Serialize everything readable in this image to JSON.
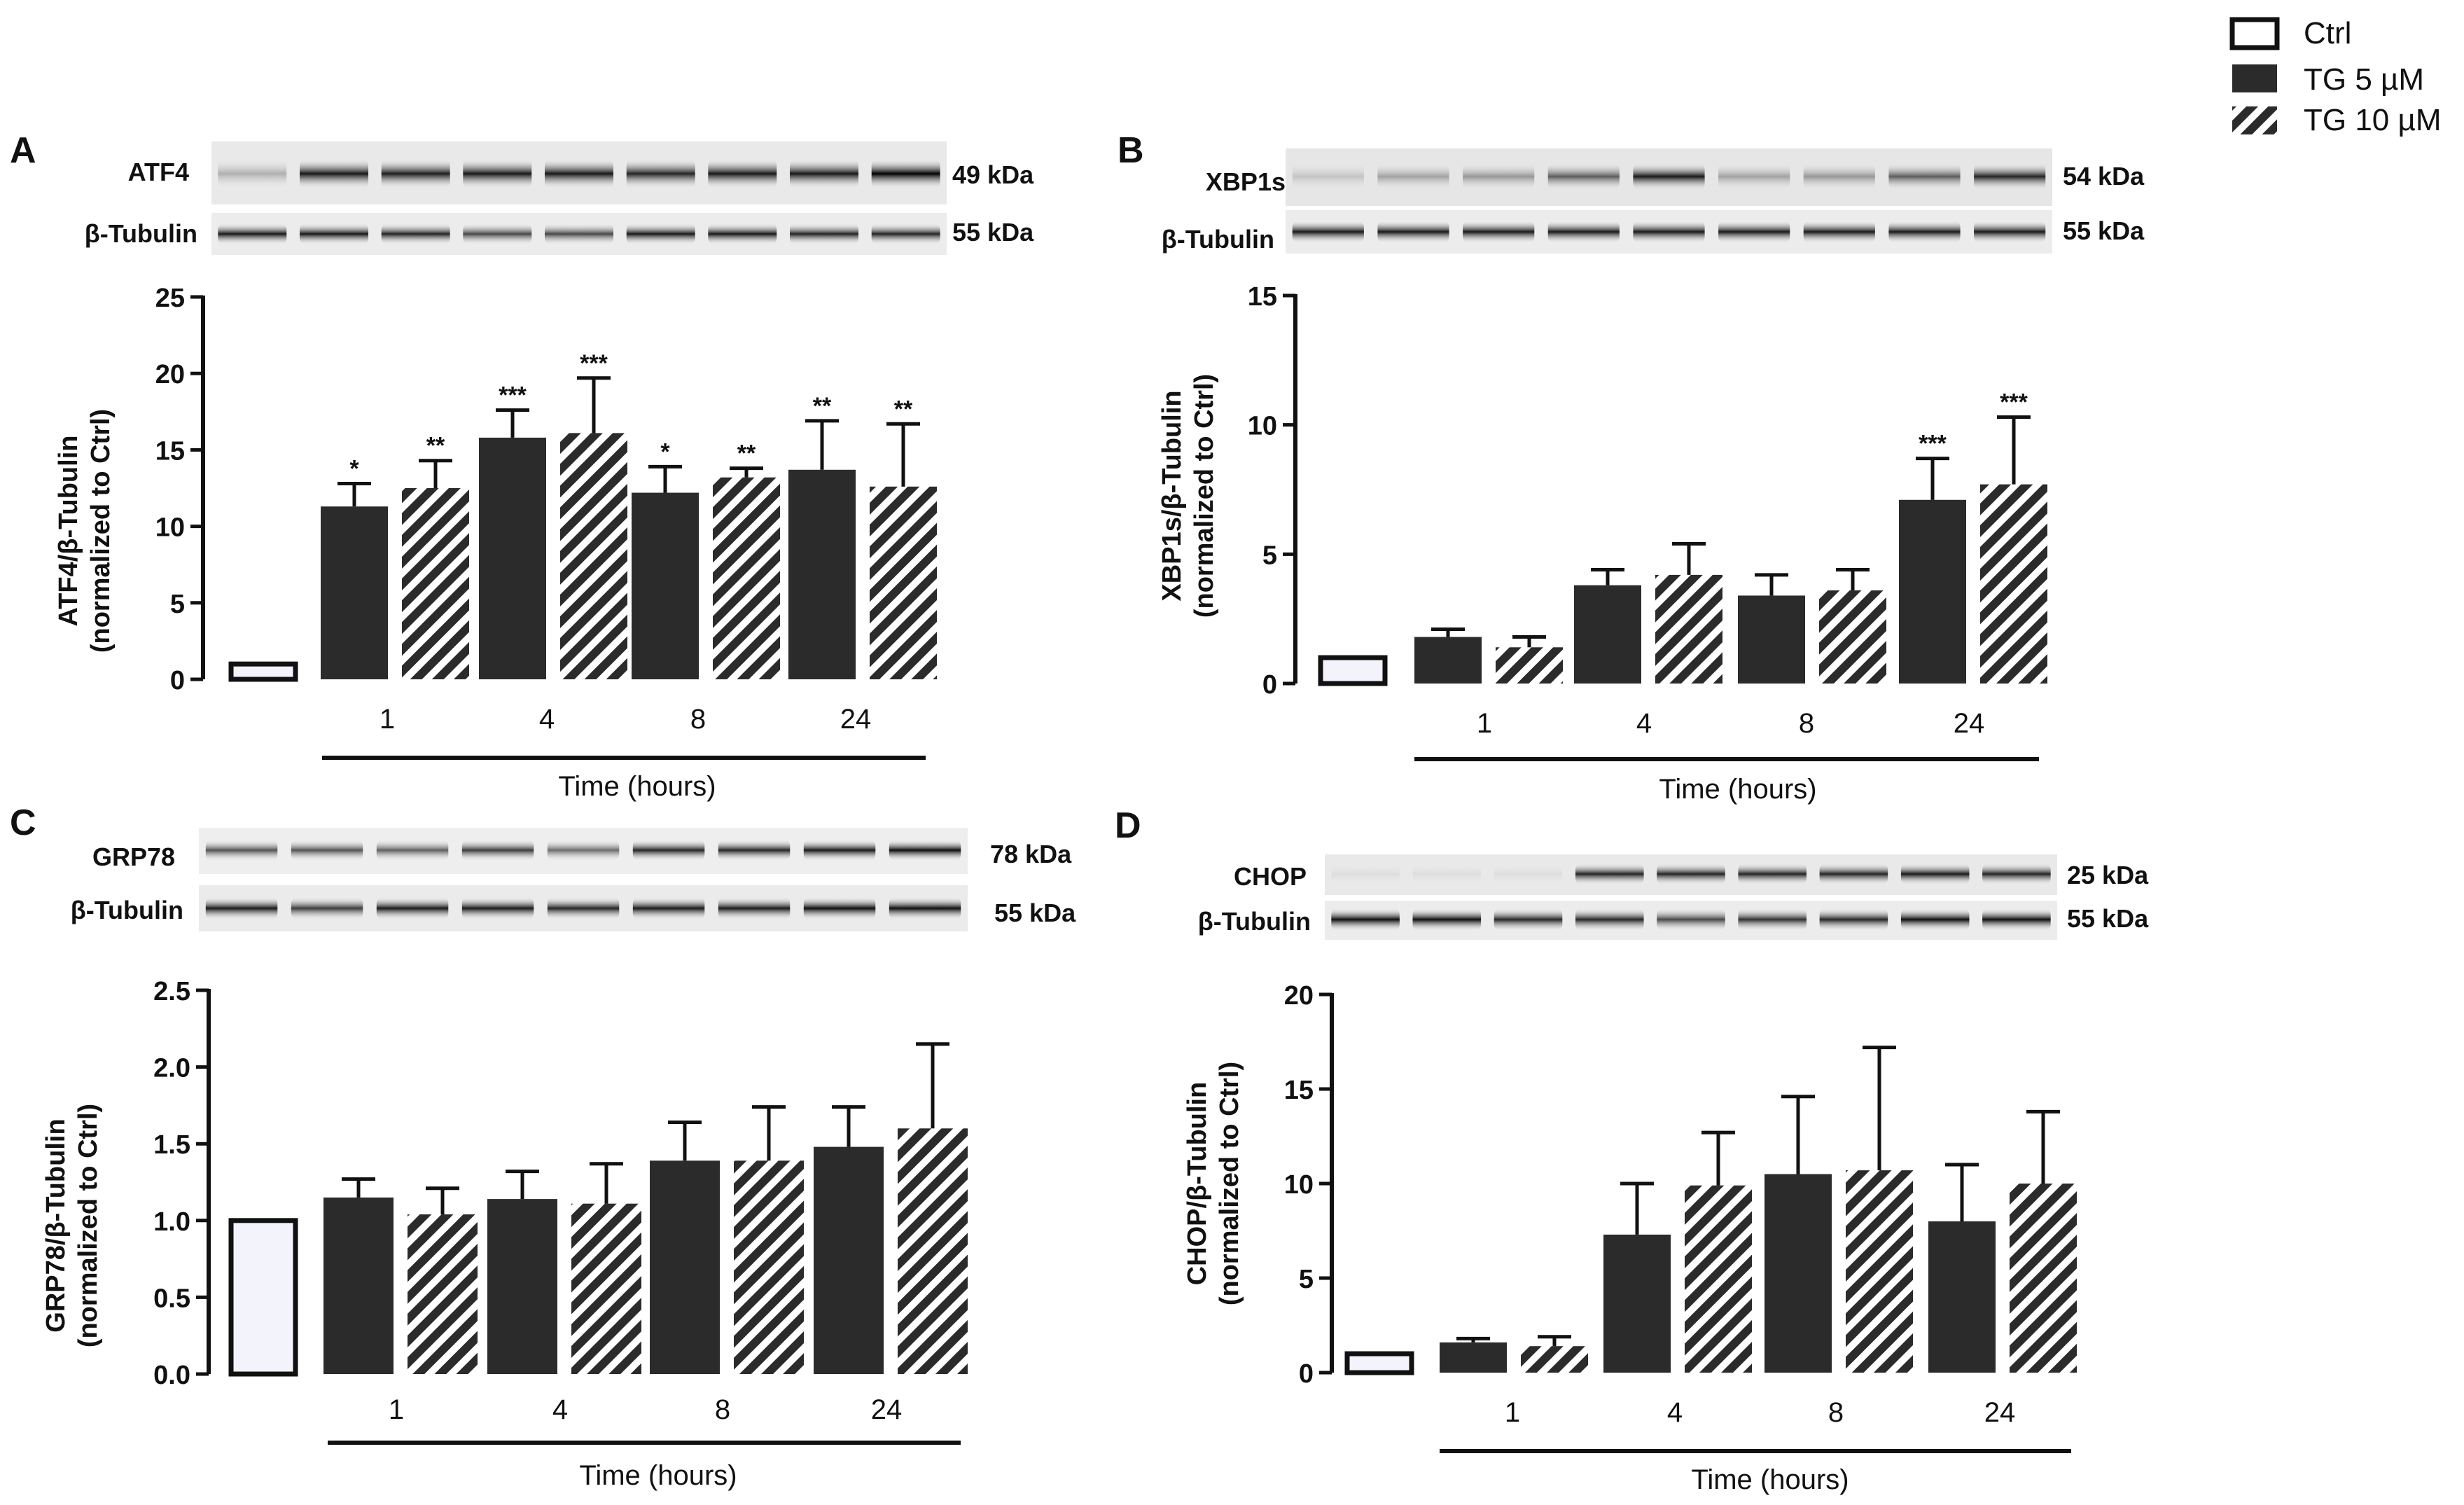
{
  "legend": [
    {
      "label": "Ctrl",
      "style": "ctrl"
    },
    {
      "label": "TG 5 µM",
      "style": "solid"
    },
    {
      "label": "TG 10 µM",
      "style": "hatch"
    }
  ],
  "colors": {
    "dark_bar": "#2b2b2b",
    "ctrl_fill": "#f2f3fb",
    "axis": "#111111"
  },
  "chart_data": [
    {
      "panel": "A",
      "type": "bar",
      "blot": {
        "rows": [
          {
            "label": "ATF4",
            "kda": "49 kDa"
          },
          {
            "label": "β-Tubulin",
            "kda": "55 kDa"
          }
        ]
      },
      "ylabel_line1": "ATF4/β-Tubulin",
      "ylabel_line2": "(normalized to Ctrl)",
      "xlabel": "Time (hours)",
      "yticks": [
        "0",
        "5",
        "10",
        "15",
        "20",
        "25"
      ],
      "ylim": [
        0,
        25
      ],
      "categories": [
        "1",
        "4",
        "8",
        "24"
      ],
      "ctrl": {
        "value": 1.0,
        "error": 0
      },
      "series": [
        {
          "name": "TG 5 µM",
          "values": [
            11.3,
            15.8,
            12.2,
            13.7
          ],
          "errors": [
            1.5,
            1.8,
            1.7,
            3.2
          ],
          "sig": [
            "*",
            "***",
            "*",
            "**"
          ]
        },
        {
          "name": "TG 10 µM",
          "values": [
            12.5,
            16.1,
            13.2,
            12.6
          ],
          "errors": [
            1.8,
            3.6,
            0.6,
            4.1
          ],
          "sig": [
            "**",
            "***",
            "**",
            "**"
          ]
        }
      ]
    },
    {
      "panel": "B",
      "type": "bar",
      "blot": {
        "rows": [
          {
            "label": "XBP1s",
            "kda": "54 kDa"
          },
          {
            "label": "β-Tubulin",
            "kda": "55 kDa"
          }
        ]
      },
      "ylabel_line1": "XBP1s/β-Tubulin",
      "ylabel_line2": "(normalized to Ctrl)",
      "xlabel": "Time (hours)",
      "yticks": [
        "0",
        "5",
        "10",
        "15"
      ],
      "ylim": [
        0,
        15
      ],
      "categories": [
        "1",
        "4",
        "8",
        "24"
      ],
      "ctrl": {
        "value": 1.0,
        "error": 0
      },
      "series": [
        {
          "name": "TG 5 µM",
          "values": [
            1.8,
            3.8,
            3.4,
            7.1
          ],
          "errors": [
            0.3,
            0.6,
            0.8,
            1.6
          ],
          "sig": [
            "",
            "",
            "",
            "***"
          ]
        },
        {
          "name": "TG 10 µM",
          "values": [
            1.4,
            4.2,
            3.6,
            7.7
          ],
          "errors": [
            0.4,
            1.2,
            0.8,
            2.6
          ],
          "sig": [
            "",
            "",
            "",
            "***"
          ]
        }
      ]
    },
    {
      "panel": "C",
      "type": "bar",
      "blot": {
        "rows": [
          {
            "label": "GRP78",
            "kda": "78 kDa"
          },
          {
            "label": "β-Tubulin",
            "kda": "55 kDa"
          }
        ]
      },
      "ylabel_line1": "GRP78/β-Tubulin",
      "ylabel_line2": "(normalized to Ctrl)",
      "xlabel": "Time (hours)",
      "yticks": [
        "0.0",
        "0.5",
        "1.0",
        "1.5",
        "2.0",
        "2.5"
      ],
      "ylim": [
        0,
        2.5
      ],
      "categories": [
        "1",
        "4",
        "8",
        "24"
      ],
      "ctrl": {
        "value": 1.0,
        "error": 0
      },
      "series": [
        {
          "name": "TG 5 µM",
          "values": [
            1.15,
            1.14,
            1.39,
            1.48
          ],
          "errors": [
            0.12,
            0.18,
            0.25,
            0.26
          ],
          "sig": [
            "",
            "",
            "",
            ""
          ]
        },
        {
          "name": "TG 10 µM",
          "values": [
            1.04,
            1.11,
            1.39,
            1.6
          ],
          "errors": [
            0.17,
            0.26,
            0.35,
            0.55
          ],
          "sig": [
            "",
            "",
            "",
            ""
          ]
        }
      ]
    },
    {
      "panel": "D",
      "type": "bar",
      "blot": {
        "rows": [
          {
            "label": "CHOP",
            "kda": "25 kDa"
          },
          {
            "label": "β-Tubulin",
            "kda": "55 kDa"
          }
        ]
      },
      "ylabel_line1": "CHOP/β-Tubulin",
      "ylabel_line2": "(normalized to Ctrl)",
      "xlabel": "Time (hours)",
      "yticks": [
        "0",
        "5",
        "10",
        "15",
        "20"
      ],
      "ylim": [
        0,
        20
      ],
      "categories": [
        "1",
        "4",
        "8",
        "24"
      ],
      "ctrl": {
        "value": 1.0,
        "error": 0
      },
      "series": [
        {
          "name": "TG 5 µM",
          "values": [
            1.6,
            7.3,
            10.5,
            8.0
          ],
          "errors": [
            0.2,
            2.7,
            4.1,
            3.0
          ],
          "sig": [
            "",
            "",
            "",
            ""
          ]
        },
        {
          "name": "TG 10 µM",
          "values": [
            1.4,
            9.9,
            10.7,
            10.0
          ],
          "errors": [
            0.5,
            2.8,
            6.5,
            3.8
          ],
          "sig": [
            "",
            "",
            "",
            ""
          ]
        }
      ]
    }
  ]
}
